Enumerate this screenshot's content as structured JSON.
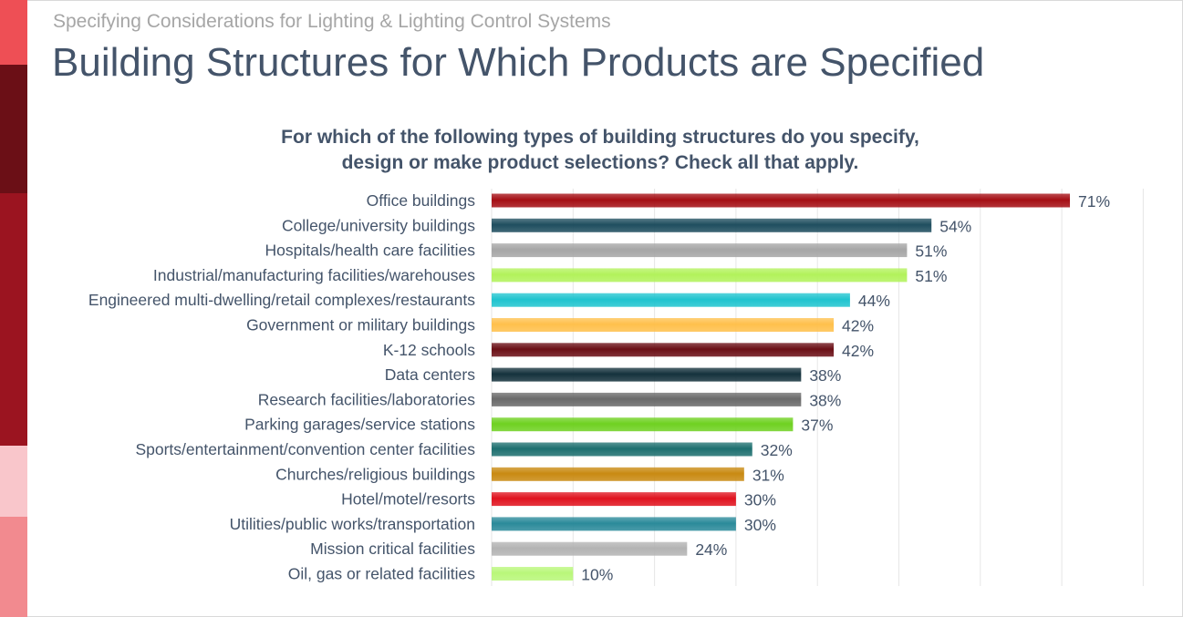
{
  "header": {
    "supertitle": "Specifying Considerations for Lighting & Lighting Control Systems",
    "title": "Building Structures for Which Products are Specified"
  },
  "chart_data": {
    "type": "bar",
    "orientation": "horizontal",
    "title_lines": [
      "For which of the following types of building structures do you specify,",
      "design or make product selections? Check all that apply."
    ],
    "categories": [
      "Office buildings",
      "College/university buildings",
      "Hospitals/health care facilities",
      "Industrial/manufacturing facilities/warehouses",
      "Engineered multi-dwelling/retail complexes/restaurants",
      "Government or military buildings",
      "K-12 schools",
      "Data centers",
      "Research facilities/laboratories",
      "Parking garages/service stations",
      "Sports/entertainment/convention center facilities",
      "Churches/religious buildings",
      "Hotel/motel/resorts",
      "Utilities/public works/transportation",
      "Mission critical facilities",
      "Oil, gas or related facilities"
    ],
    "values": [
      71,
      54,
      51,
      51,
      44,
      42,
      42,
      38,
      38,
      37,
      32,
      31,
      30,
      30,
      24,
      10
    ],
    "value_labels": [
      "71%",
      "54%",
      "51%",
      "51%",
      "44%",
      "42%",
      "42%",
      "38%",
      "38%",
      "37%",
      "32%",
      "31%",
      "30%",
      "30%",
      "24%",
      "10%"
    ],
    "bar_colors": [
      "#a50f15",
      "#1f4e5f",
      "#a6a6a6",
      "#b2f25b",
      "#20c4cf",
      "#ffc04c",
      "#6b0f16",
      "#15323d",
      "#6a6a6a",
      "#6fd121",
      "#1e7070",
      "#c98a12",
      "#e0131f",
      "#2b8a9a",
      "#b3b3b3",
      "#b9f77a"
    ],
    "xlim": [
      0,
      80
    ],
    "grid": true
  },
  "colors": {
    "side_strip": [
      "#ee4f55",
      "#6b0f16",
      "#9b1420",
      "#f9c6cb",
      "#f28a8f"
    ],
    "title": "#44546a",
    "supertitle": "#a6a6a6",
    "gridline": "#e6e6e6"
  }
}
